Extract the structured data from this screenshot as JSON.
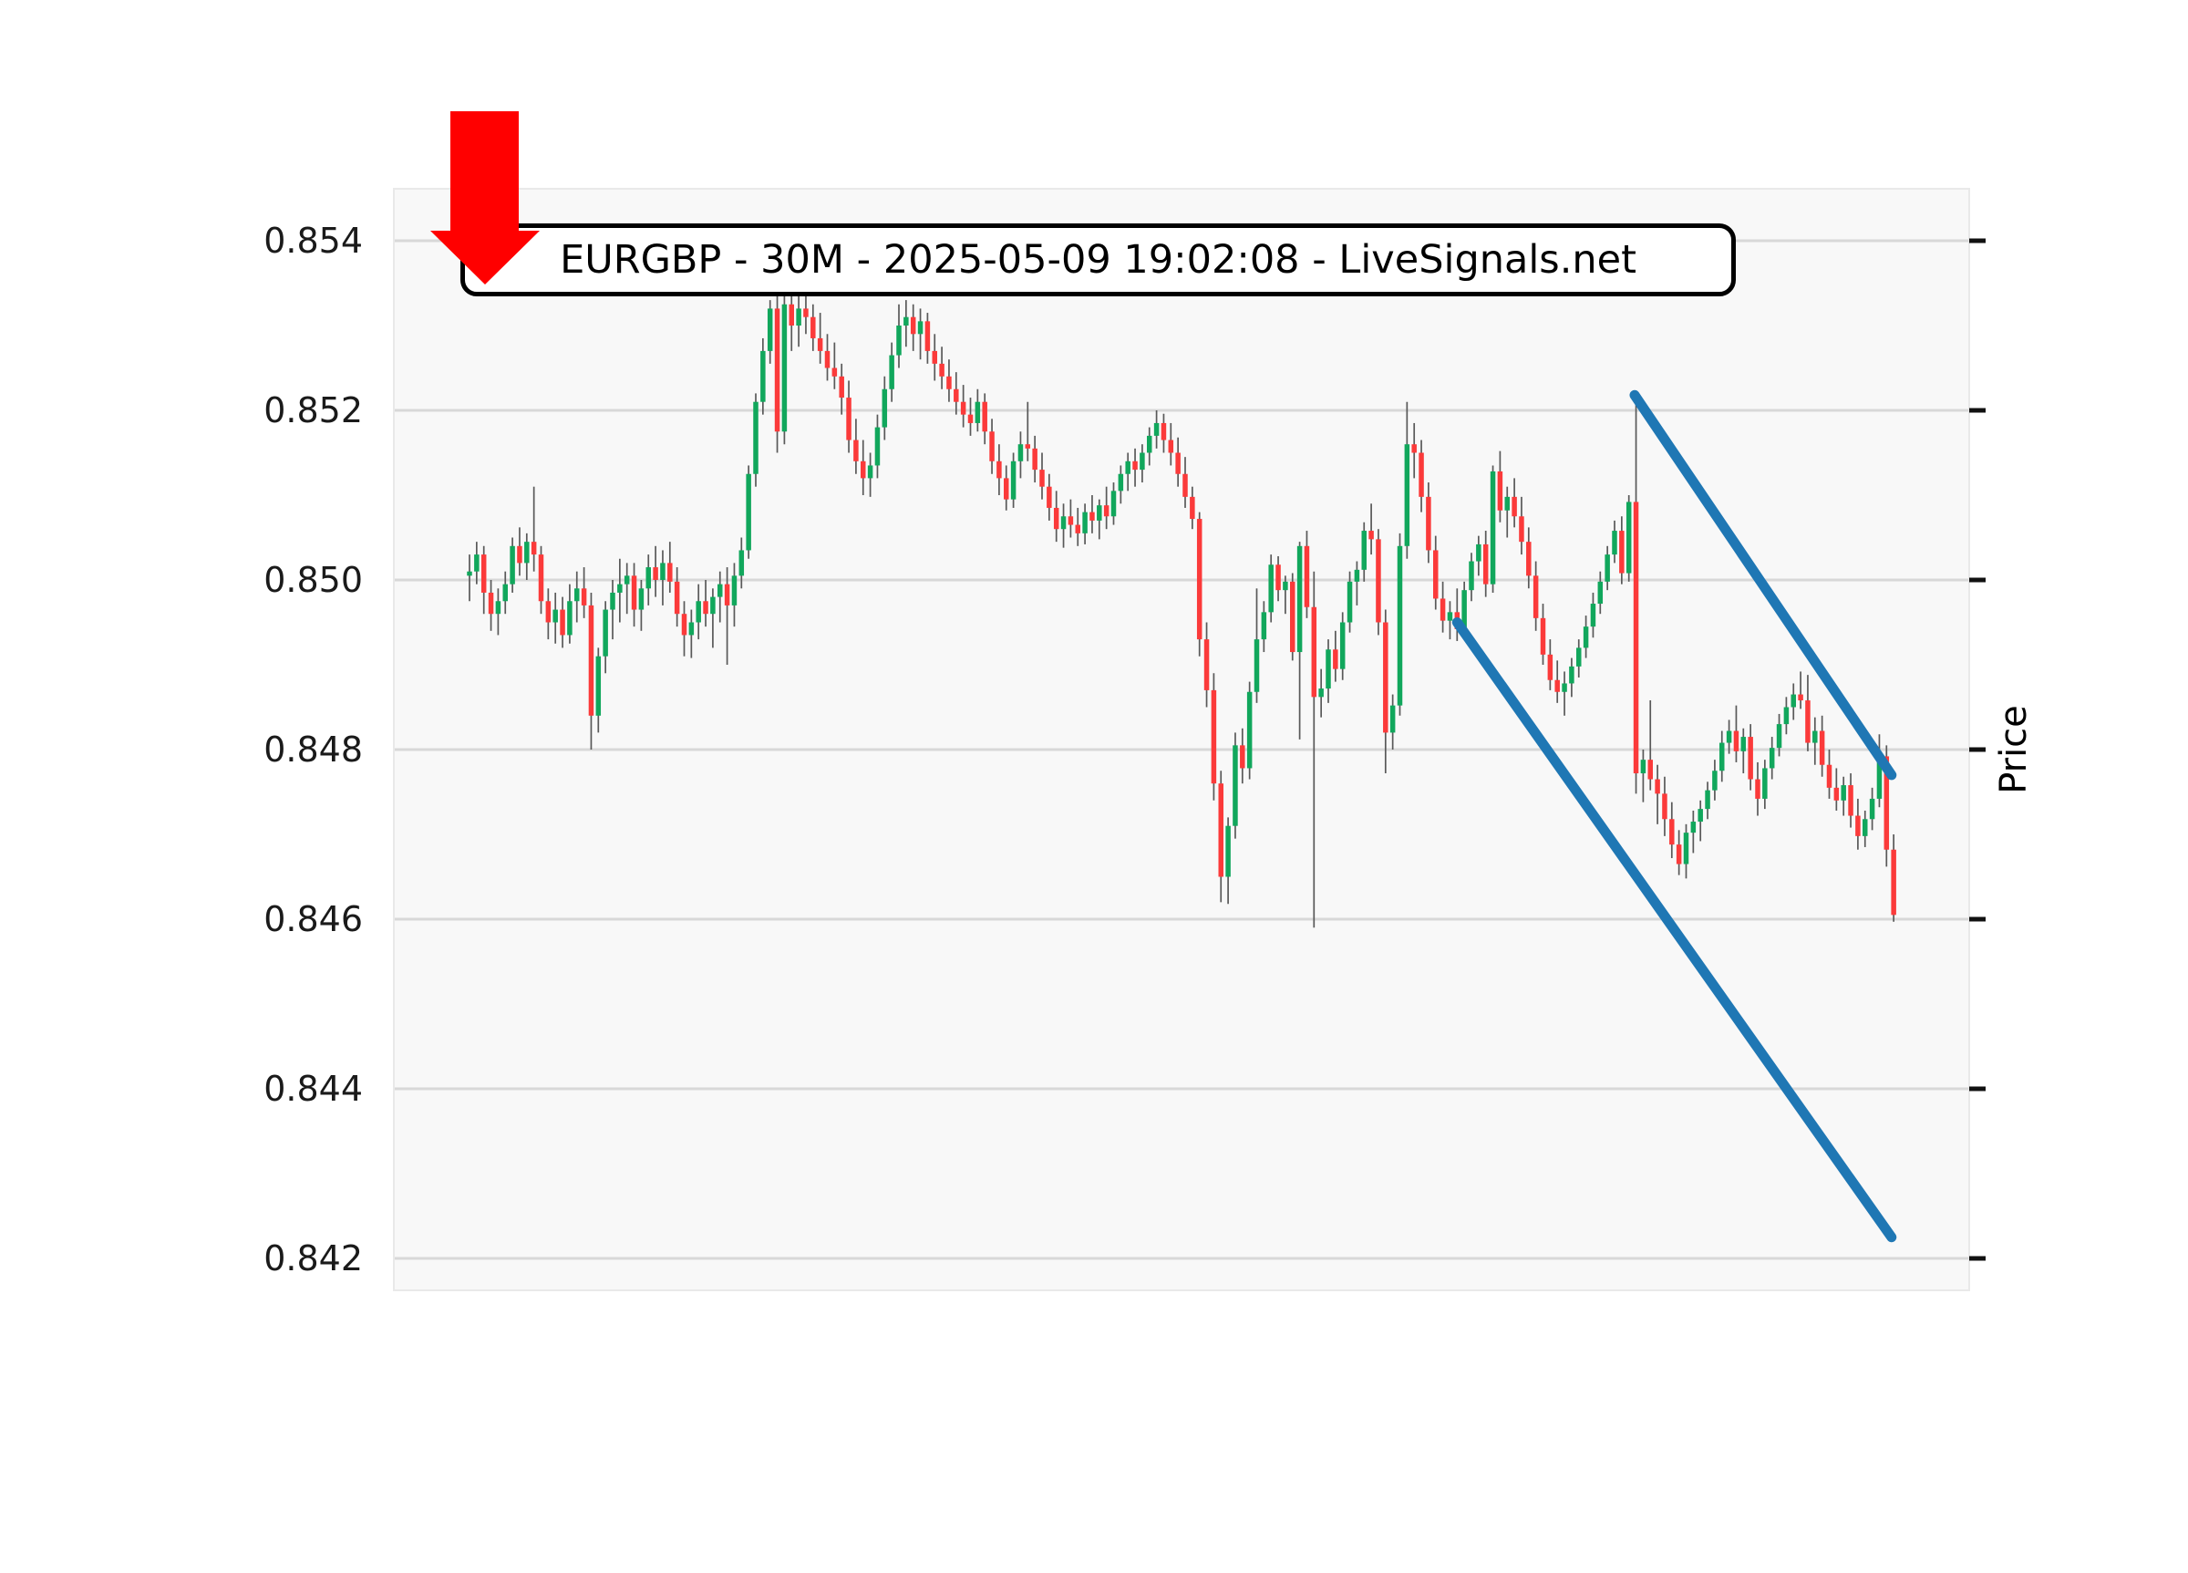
{
  "header": {
    "title": "EURGBP - 30M - 2025-05-09 19:02:08 - LiveSignals.net"
  },
  "chart_data": {
    "type": "candlestick",
    "symbol": "EURGBP",
    "timeframe": "30M",
    "timestamp": "2025-05-09 19:02:08",
    "source": "LiveSignals.net",
    "ylabel": "Price",
    "ylim": [
      0.8416,
      0.8546
    ],
    "grid": "horizontal-only",
    "legend": "none",
    "y_ticks": [
      {
        "value": 0.854,
        "label": "0.854"
      },
      {
        "value": 0.852,
        "label": "0.852"
      },
      {
        "value": 0.85,
        "label": "0.850"
      },
      {
        "value": 0.848,
        "label": "0.848"
      },
      {
        "value": 0.846,
        "label": "0.846"
      },
      {
        "value": 0.844,
        "label": "0.844"
      },
      {
        "value": 0.842,
        "label": "0.842"
      }
    ],
    "colors": {
      "up": "#11a75c",
      "down": "#fb3a3a",
      "wick": "#595959",
      "trendline": "#1f77b4",
      "grid": "#d8d8d8",
      "plot_bg": "#f8f8f8",
      "spine": "#e9e9e9",
      "tick_mark": "#111111",
      "label_text": "#1a1a1a",
      "arrow": "#ff0000"
    },
    "annotations": {
      "arrow": {
        "shape": "down-arrow",
        "color": "#ff0000",
        "points_at": "chart title area"
      },
      "channel": "descending parallel channel drawn with two blue trendlines"
    },
    "trendlines": [
      {
        "name": "upper-channel-line",
        "from": {
          "index": 162.8,
          "price": 0.85218
        },
        "to": {
          "index": 198.7,
          "price": 0.8477
        }
      },
      {
        "name": "lower-channel-line",
        "from": {
          "index": 138.0,
          "price": 0.8495
        },
        "to": {
          "index": 198.7,
          "price": 0.84225
        }
      }
    ],
    "ohlc": [
      [
        0.85005,
        0.8503,
        0.84975,
        0.8501
      ],
      [
        0.8501,
        0.85045,
        0.84995,
        0.8503
      ],
      [
        0.8503,
        0.8504,
        0.8496,
        0.84985
      ],
      [
        0.84985,
        0.85,
        0.8494,
        0.8496
      ],
      [
        0.8496,
        0.8499,
        0.84935,
        0.84975
      ],
      [
        0.84975,
        0.8501,
        0.8496,
        0.84995
      ],
      [
        0.84995,
        0.8505,
        0.84985,
        0.8504
      ],
      [
        0.8504,
        0.85062,
        0.85005,
        0.8502
      ],
      [
        0.8502,
        0.85055,
        0.85,
        0.85045
      ],
      [
        0.85045,
        0.8511,
        0.8501,
        0.8503
      ],
      [
        0.8503,
        0.8504,
        0.8496,
        0.84975
      ],
      [
        0.84975,
        0.8499,
        0.8493,
        0.8495
      ],
      [
        0.8495,
        0.84985,
        0.84925,
        0.84965
      ],
      [
        0.84965,
        0.8498,
        0.8492,
        0.84935
      ],
      [
        0.84935,
        0.84995,
        0.84925,
        0.84975
      ],
      [
        0.84975,
        0.8501,
        0.8495,
        0.8499
      ],
      [
        0.8499,
        0.85015,
        0.84955,
        0.8497
      ],
      [
        0.8497,
        0.84985,
        0.848,
        0.8484
      ],
      [
        0.8484,
        0.8492,
        0.8482,
        0.8491
      ],
      [
        0.8491,
        0.84975,
        0.8489,
        0.84965
      ],
      [
        0.84965,
        0.85,
        0.8493,
        0.84985
      ],
      [
        0.84985,
        0.85025,
        0.8495,
        0.84995
      ],
      [
        0.84995,
        0.8502,
        0.8496,
        0.85005
      ],
      [
        0.85005,
        0.8502,
        0.84945,
        0.84965
      ],
      [
        0.84965,
        0.85,
        0.8494,
        0.8499
      ],
      [
        0.8499,
        0.8503,
        0.8497,
        0.85015
      ],
      [
        0.85015,
        0.8504,
        0.8498,
        0.85
      ],
      [
        0.85,
        0.85035,
        0.8497,
        0.8502
      ],
      [
        0.8502,
        0.85045,
        0.84985,
        0.84998
      ],
      [
        0.84998,
        0.85015,
        0.84945,
        0.8496
      ],
      [
        0.8496,
        0.84975,
        0.8491,
        0.84935
      ],
      [
        0.84935,
        0.84965,
        0.84908,
        0.8495
      ],
      [
        0.8495,
        0.84995,
        0.8493,
        0.84975
      ],
      [
        0.84975,
        0.85,
        0.84945,
        0.8496
      ],
      [
        0.8496,
        0.8499,
        0.8492,
        0.8498
      ],
      [
        0.8498,
        0.8501,
        0.8495,
        0.84995
      ],
      [
        0.84995,
        0.85015,
        0.849,
        0.8497
      ],
      [
        0.8497,
        0.8502,
        0.84945,
        0.85005
      ],
      [
        0.85005,
        0.8505,
        0.8499,
        0.85035
      ],
      [
        0.85035,
        0.85135,
        0.85025,
        0.85125
      ],
      [
        0.85125,
        0.8522,
        0.8511,
        0.8521
      ],
      [
        0.8521,
        0.85285,
        0.85195,
        0.8527
      ],
      [
        0.8527,
        0.8533,
        0.85255,
        0.8532
      ],
      [
        0.8532,
        0.8534,
        0.8515,
        0.85175
      ],
      [
        0.85175,
        0.85335,
        0.8516,
        0.85325
      ],
      [
        0.85325,
        0.8534,
        0.8527,
        0.853
      ],
      [
        0.853,
        0.85335,
        0.85275,
        0.8532
      ],
      [
        0.8532,
        0.85338,
        0.8529,
        0.8531
      ],
      [
        0.8531,
        0.85325,
        0.8527,
        0.85285
      ],
      [
        0.85285,
        0.85315,
        0.85255,
        0.8527
      ],
      [
        0.8527,
        0.8529,
        0.85235,
        0.8525
      ],
      [
        0.8525,
        0.8528,
        0.85225,
        0.8524
      ],
      [
        0.8524,
        0.85255,
        0.85195,
        0.85215
      ],
      [
        0.85215,
        0.85235,
        0.8515,
        0.85165
      ],
      [
        0.85165,
        0.8519,
        0.85125,
        0.8514
      ],
      [
        0.8514,
        0.85165,
        0.851,
        0.8512
      ],
      [
        0.8512,
        0.8515,
        0.85098,
        0.85135
      ],
      [
        0.85135,
        0.85195,
        0.8512,
        0.8518
      ],
      [
        0.8518,
        0.8524,
        0.85165,
        0.85225
      ],
      [
        0.85225,
        0.8528,
        0.8521,
        0.85265
      ],
      [
        0.85265,
        0.85325,
        0.8525,
        0.853
      ],
      [
        0.853,
        0.8533,
        0.85275,
        0.8531
      ],
      [
        0.8531,
        0.85325,
        0.8527,
        0.8529
      ],
      [
        0.8529,
        0.8532,
        0.8526,
        0.85305
      ],
      [
        0.85305,
        0.85315,
        0.85255,
        0.8527
      ],
      [
        0.8527,
        0.8529,
        0.85235,
        0.85255
      ],
      [
        0.85255,
        0.85275,
        0.85225,
        0.8524
      ],
      [
        0.8524,
        0.8526,
        0.8521,
        0.85225
      ],
      [
        0.85225,
        0.85245,
        0.85195,
        0.8521
      ],
      [
        0.8521,
        0.8523,
        0.8518,
        0.85195
      ],
      [
        0.85195,
        0.85215,
        0.8517,
        0.85185
      ],
      [
        0.85185,
        0.85225,
        0.85175,
        0.8521
      ],
      [
        0.8521,
        0.8522,
        0.8516,
        0.85175
      ],
      [
        0.85175,
        0.8519,
        0.85125,
        0.8514
      ],
      [
        0.8514,
        0.8516,
        0.851,
        0.8512
      ],
      [
        0.8512,
        0.85135,
        0.85082,
        0.85095
      ],
      [
        0.85095,
        0.8515,
        0.85085,
        0.8514
      ],
      [
        0.8514,
        0.85175,
        0.8512,
        0.8516
      ],
      [
        0.8516,
        0.8521,
        0.8514,
        0.85155
      ],
      [
        0.85155,
        0.8517,
        0.85115,
        0.8513
      ],
      [
        0.8513,
        0.8515,
        0.85095,
        0.8511
      ],
      [
        0.8511,
        0.85125,
        0.8507,
        0.85085
      ],
      [
        0.85085,
        0.85105,
        0.85045,
        0.8506
      ],
      [
        0.8506,
        0.8509,
        0.85038,
        0.85075
      ],
      [
        0.85075,
        0.85095,
        0.8505,
        0.85065
      ],
      [
        0.85065,
        0.85085,
        0.8504,
        0.85055
      ],
      [
        0.85055,
        0.8509,
        0.85042,
        0.8508
      ],
      [
        0.8508,
        0.851,
        0.85055,
        0.8507
      ],
      [
        0.8507,
        0.85095,
        0.85048,
        0.85088
      ],
      [
        0.85088,
        0.8511,
        0.8506,
        0.85075
      ],
      [
        0.85075,
        0.85115,
        0.85065,
        0.85105
      ],
      [
        0.85105,
        0.85135,
        0.8509,
        0.85125
      ],
      [
        0.85125,
        0.8515,
        0.85105,
        0.8514
      ],
      [
        0.8514,
        0.85155,
        0.8511,
        0.8513
      ],
      [
        0.8513,
        0.8516,
        0.85115,
        0.8515
      ],
      [
        0.8515,
        0.8518,
        0.85135,
        0.8517
      ],
      [
        0.8517,
        0.852,
        0.85155,
        0.85185
      ],
      [
        0.85185,
        0.85196,
        0.8515,
        0.85165
      ],
      [
        0.85165,
        0.85185,
        0.85135,
        0.8515
      ],
      [
        0.8515,
        0.85168,
        0.8511,
        0.85125
      ],
      [
        0.85125,
        0.85145,
        0.85085,
        0.85098
      ],
      [
        0.85098,
        0.8511,
        0.8506,
        0.85072
      ],
      [
        0.85072,
        0.8508,
        0.8491,
        0.8493
      ],
      [
        0.8493,
        0.8495,
        0.8485,
        0.8487
      ],
      [
        0.8487,
        0.8489,
        0.8474,
        0.8476
      ],
      [
        0.8476,
        0.84775,
        0.8462,
        0.8465
      ],
      [
        0.8465,
        0.8472,
        0.84618,
        0.8471
      ],
      [
        0.8471,
        0.8482,
        0.84695,
        0.84805
      ],
      [
        0.84805,
        0.84825,
        0.8476,
        0.84778
      ],
      [
        0.84778,
        0.8488,
        0.84765,
        0.84868
      ],
      [
        0.84868,
        0.8499,
        0.84855,
        0.8493
      ],
      [
        0.8493,
        0.84975,
        0.84915,
        0.84962
      ],
      [
        0.84962,
        0.8503,
        0.8495,
        0.85018
      ],
      [
        0.85018,
        0.85028,
        0.84975,
        0.84988
      ],
      [
        0.84988,
        0.85005,
        0.8496,
        0.84998
      ],
      [
        0.84998,
        0.85008,
        0.84905,
        0.84915
      ],
      [
        0.84915,
        0.85045,
        0.84812,
        0.8504
      ],
      [
        0.8504,
        0.85058,
        0.84955,
        0.84968
      ],
      [
        0.84968,
        0.8501,
        0.8459,
        0.84862
      ],
      [
        0.84862,
        0.84895,
        0.84838,
        0.84872
      ],
      [
        0.84872,
        0.8493,
        0.84855,
        0.84918
      ],
      [
        0.84918,
        0.8494,
        0.8488,
        0.84895
      ],
      [
        0.84895,
        0.84962,
        0.84882,
        0.8495
      ],
      [
        0.8495,
        0.8501,
        0.84938,
        0.84998
      ],
      [
        0.84998,
        0.85022,
        0.8497,
        0.85012
      ],
      [
        0.85012,
        0.85068,
        0.84998,
        0.85058
      ],
      [
        0.85058,
        0.8509,
        0.8503,
        0.85048
      ],
      [
        0.85048,
        0.8506,
        0.84935,
        0.8495
      ],
      [
        0.8495,
        0.84965,
        0.84772,
        0.8482
      ],
      [
        0.8482,
        0.84865,
        0.848,
        0.84852
      ],
      [
        0.84852,
        0.85055,
        0.8484,
        0.8504
      ],
      [
        0.8504,
        0.8521,
        0.85025,
        0.8516
      ],
      [
        0.8516,
        0.85185,
        0.8512,
        0.8515
      ],
      [
        0.8515,
        0.85165,
        0.8508,
        0.85098
      ],
      [
        0.85098,
        0.85115,
        0.8502,
        0.85035
      ],
      [
        0.85035,
        0.85052,
        0.84965,
        0.84978
      ],
      [
        0.84978,
        0.84998,
        0.84938,
        0.84952
      ],
      [
        0.84952,
        0.84975,
        0.8493,
        0.84962
      ],
      [
        0.84962,
        0.8499,
        0.84928,
        0.84942
      ],
      [
        0.84942,
        0.84998,
        0.84935,
        0.84988
      ],
      [
        0.84988,
        0.85032,
        0.84975,
        0.85022
      ],
      [
        0.85022,
        0.85052,
        0.85005,
        0.85042
      ],
      [
        0.85042,
        0.85058,
        0.8498,
        0.84995
      ],
      [
        0.84995,
        0.85135,
        0.84985,
        0.85128
      ],
      [
        0.85128,
        0.85152,
        0.85068,
        0.85082
      ],
      [
        0.85082,
        0.8511,
        0.8505,
        0.85098
      ],
      [
        0.85098,
        0.8512,
        0.85062,
        0.85075
      ],
      [
        0.85075,
        0.85098,
        0.8503,
        0.85045
      ],
      [
        0.85045,
        0.85062,
        0.8499,
        0.85005
      ],
      [
        0.85005,
        0.85022,
        0.8494,
        0.84955
      ],
      [
        0.84955,
        0.84972,
        0.849,
        0.84912
      ],
      [
        0.84912,
        0.8493,
        0.8487,
        0.84882
      ],
      [
        0.84882,
        0.84905,
        0.84855,
        0.84868
      ],
      [
        0.84868,
        0.84892,
        0.8484,
        0.84878
      ],
      [
        0.84878,
        0.84908,
        0.84862,
        0.84898
      ],
      [
        0.84898,
        0.8493,
        0.84885,
        0.8492
      ],
      [
        0.8492,
        0.84958,
        0.84908,
        0.84945
      ],
      [
        0.84945,
        0.84985,
        0.84932,
        0.84972
      ],
      [
        0.84972,
        0.8501,
        0.8496,
        0.84998
      ],
      [
        0.84998,
        0.8504,
        0.84988,
        0.8503
      ],
      [
        0.8503,
        0.8507,
        0.8502,
        0.85058
      ],
      [
        0.85058,
        0.85075,
        0.84995,
        0.85008
      ],
      [
        0.85008,
        0.851,
        0.84998,
        0.85092
      ],
      [
        0.85092,
        0.85218,
        0.84748,
        0.84772
      ],
      [
        0.84772,
        0.848,
        0.84738,
        0.84788
      ],
      [
        0.84788,
        0.84858,
        0.84752,
        0.84765
      ],
      [
        0.84765,
        0.84782,
        0.84712,
        0.84748
      ],
      [
        0.84748,
        0.84768,
        0.84698,
        0.84718
      ],
      [
        0.84718,
        0.84738,
        0.84672,
        0.84688
      ],
      [
        0.84688,
        0.84705,
        0.84652,
        0.84665
      ],
      [
        0.84665,
        0.84712,
        0.84648,
        0.84702
      ],
      [
        0.84702,
        0.84728,
        0.84678,
        0.84715
      ],
      [
        0.84715,
        0.8474,
        0.84692,
        0.8473
      ],
      [
        0.8473,
        0.84762,
        0.84718,
        0.84752
      ],
      [
        0.84752,
        0.84788,
        0.8474,
        0.84775
      ],
      [
        0.84775,
        0.84822,
        0.84762,
        0.84808
      ],
      [
        0.84808,
        0.84835,
        0.84795,
        0.84822
      ],
      [
        0.84822,
        0.84852,
        0.84785,
        0.84798
      ],
      [
        0.84798,
        0.84825,
        0.84772,
        0.84815
      ],
      [
        0.84815,
        0.8483,
        0.84752,
        0.84765
      ],
      [
        0.84765,
        0.84785,
        0.84722,
        0.84742
      ],
      [
        0.84742,
        0.84788,
        0.8473,
        0.84778
      ],
      [
        0.84778,
        0.84815,
        0.84765,
        0.84802
      ],
      [
        0.84802,
        0.84842,
        0.84792,
        0.8483
      ],
      [
        0.8483,
        0.84862,
        0.84818,
        0.8485
      ],
      [
        0.8485,
        0.84878,
        0.84835,
        0.84865
      ],
      [
        0.84865,
        0.84892,
        0.84848,
        0.84858
      ],
      [
        0.84858,
        0.84888,
        0.84798,
        0.84808
      ],
      [
        0.84808,
        0.84838,
        0.84782,
        0.84822
      ],
      [
        0.84822,
        0.8484,
        0.84768,
        0.84782
      ],
      [
        0.84782,
        0.848,
        0.84742,
        0.84755
      ],
      [
        0.84755,
        0.84778,
        0.84728,
        0.8474
      ],
      [
        0.8474,
        0.84768,
        0.84722,
        0.84758
      ],
      [
        0.84758,
        0.84772,
        0.84708,
        0.84722
      ],
      [
        0.84722,
        0.84742,
        0.84682,
        0.84698
      ],
      [
        0.84698,
        0.84728,
        0.84685,
        0.84718
      ],
      [
        0.84718,
        0.84755,
        0.84705,
        0.84742
      ],
      [
        0.84742,
        0.84818,
        0.84732,
        0.84792
      ],
      [
        0.84792,
        0.84805,
        0.84662,
        0.84682
      ],
      [
        0.84682,
        0.847,
        0.84597,
        0.84605
      ]
    ]
  }
}
